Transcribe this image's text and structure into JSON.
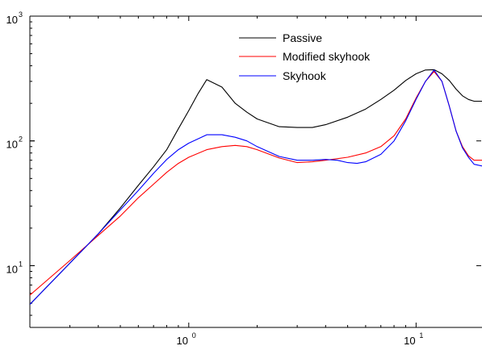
{
  "chart_data": {
    "type": "line",
    "title": "",
    "xlabel": "",
    "ylabel": "",
    "x_scale": "log",
    "y_scale": "log",
    "xlim": [
      0.2,
      19.5
    ],
    "ylim": [
      3.2,
      1000
    ],
    "grid": false,
    "legend_position": "top-center",
    "x_tick_labels": [
      {
        "value": 1,
        "base": "10",
        "exp": "0"
      },
      {
        "value": 10,
        "base": "10",
        "exp": "1"
      }
    ],
    "y_tick_labels": [
      {
        "value": 10,
        "base": "10",
        "exp": "1"
      },
      {
        "value": 100,
        "base": "10",
        "exp": "2"
      },
      {
        "value": 1000,
        "base": "10",
        "exp": "3"
      }
    ],
    "series": [
      {
        "name": "Passive",
        "color": "#000000",
        "x": [
          0.2,
          0.3,
          0.4,
          0.5,
          0.6,
          0.7,
          0.8,
          0.9,
          1.0,
          1.1,
          1.2,
          1.4,
          1.6,
          1.8,
          2.0,
          2.5,
          3.0,
          3.5,
          4.0,
          5.0,
          6.0,
          7.0,
          8.0,
          9.0,
          10.0,
          11.0,
          12.0,
          13.0,
          14.0,
          15.0,
          16.0,
          17.0,
          18.0,
          19.5
        ],
        "y": [
          4.9,
          10.5,
          18,
          29,
          44,
          62,
          85,
          125,
          175,
          240,
          310,
          270,
          200,
          170,
          150,
          130,
          128,
          128,
          135,
          155,
          180,
          215,
          255,
          305,
          345,
          370,
          372,
          345,
          305,
          260,
          230,
          215,
          208,
          208
        ]
      },
      {
        "name": "Modified skyhook",
        "color": "#ff0000",
        "x": [
          0.2,
          0.3,
          0.4,
          0.5,
          0.6,
          0.7,
          0.8,
          0.9,
          1.0,
          1.2,
          1.4,
          1.6,
          1.8,
          2.0,
          2.5,
          3.0,
          3.5,
          4.0,
          5.0,
          6.0,
          7.0,
          8.0,
          9.0,
          10.0,
          11.0,
          12.0,
          13.0,
          14.0,
          15.0,
          16.0,
          17.0,
          18.0,
          19.5
        ],
        "y": [
          5.8,
          11,
          17.5,
          25,
          35,
          45,
          56,
          66,
          74,
          85,
          90,
          92,
          90,
          85,
          73,
          67,
          68,
          70,
          74,
          80,
          90,
          110,
          150,
          220,
          300,
          360,
          300,
          190,
          120,
          90,
          76,
          70,
          70
        ]
      },
      {
        "name": "Skyhook",
        "color": "#0000ff",
        "x": [
          0.2,
          0.3,
          0.4,
          0.5,
          0.6,
          0.7,
          0.8,
          0.9,
          1.0,
          1.1,
          1.2,
          1.4,
          1.6,
          1.8,
          2.0,
          2.5,
          3.0,
          3.5,
          4.0,
          4.5,
          5.0,
          5.5,
          6.0,
          7.0,
          8.0,
          9.0,
          10.0,
          11.0,
          12.0,
          13.0,
          14.0,
          15.0,
          16.0,
          17.0,
          18.0,
          19.5
        ],
        "y": [
          4.9,
          10.5,
          18,
          28,
          40,
          55,
          71,
          85,
          96,
          104,
          112,
          112,
          107,
          100,
          90,
          75,
          70,
          70,
          71,
          70,
          67,
          66,
          68,
          78,
          100,
          145,
          215,
          300,
          370,
          300,
          190,
          120,
          88,
          74,
          65,
          63
        ]
      }
    ]
  }
}
